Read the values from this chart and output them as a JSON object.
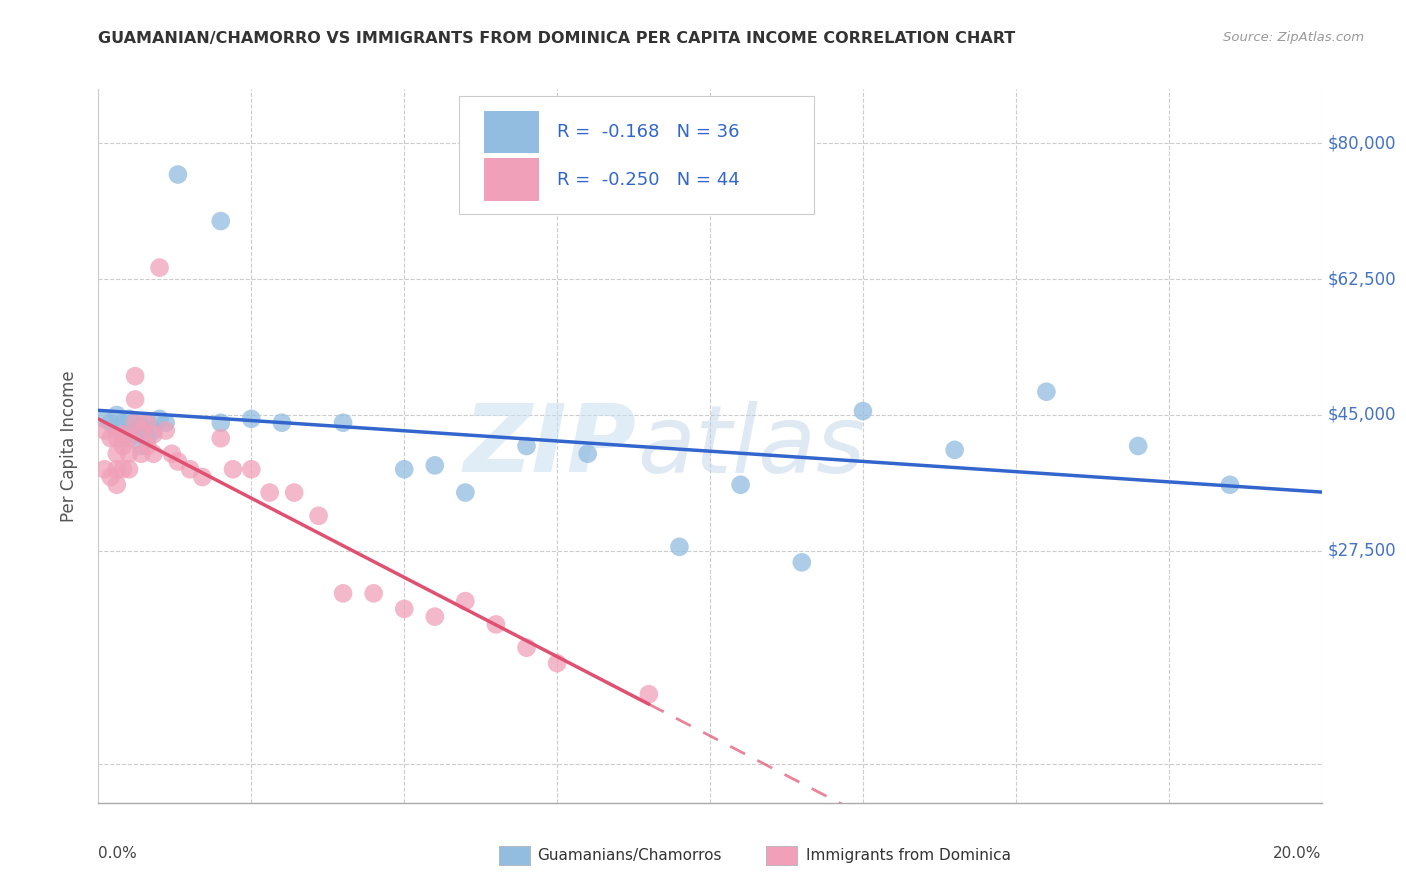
{
  "title": "GUAMANIAN/CHAMORRO VS IMMIGRANTS FROM DOMINICA PER CAPITA INCOME CORRELATION CHART",
  "source": "Source: ZipAtlas.com",
  "ylabel": "Per Capita Income",
  "yticks": [
    0,
    27500,
    45000,
    62500,
    80000
  ],
  "ytick_labels": [
    "",
    "$27,500",
    "$45,000",
    "$62,500",
    "$80,000"
  ],
  "ylim": [
    -5000,
    87000
  ],
  "xlim": [
    0.0,
    0.2
  ],
  "series1_name": "Guamanians/Chamorros",
  "series1_color": "#92bce0",
  "series1_R": "-0.168",
  "series1_N": "36",
  "series1_line_color": "#3366cc",
  "series2_name": "Immigrants from Dominica",
  "series2_color": "#f0a0b8",
  "series2_R": "-0.250",
  "series2_N": "44",
  "series2_line_color": "#e05070",
  "watermark_zip": "ZIP",
  "watermark_atlas": "atlas",
  "background_color": "#ffffff",
  "grid_color": "#cccccc",
  "series1_x": [
    0.001,
    0.002,
    0.003,
    0.003,
    0.004,
    0.004,
    0.005,
    0.005,
    0.006,
    0.006,
    0.007,
    0.007,
    0.008,
    0.008,
    0.009,
    0.01,
    0.011,
    0.013,
    0.02,
    0.02,
    0.025,
    0.03,
    0.04,
    0.05,
    0.055,
    0.06,
    0.07,
    0.08,
    0.095,
    0.105,
    0.115,
    0.125,
    0.14,
    0.155,
    0.17,
    0.185
  ],
  "series1_y": [
    44500,
    44000,
    45000,
    43000,
    44000,
    42000,
    44500,
    43000,
    44000,
    42500,
    43500,
    41000,
    44000,
    42000,
    43000,
    44500,
    44000,
    76000,
    70000,
    44000,
    44500,
    44000,
    44000,
    38000,
    38500,
    35000,
    41000,
    40000,
    28000,
    36000,
    26000,
    45500,
    40500,
    48000,
    41000,
    36000
  ],
  "series2_x": [
    0.001,
    0.001,
    0.002,
    0.002,
    0.003,
    0.003,
    0.003,
    0.003,
    0.004,
    0.004,
    0.004,
    0.005,
    0.005,
    0.005,
    0.006,
    0.006,
    0.006,
    0.007,
    0.007,
    0.008,
    0.008,
    0.009,
    0.009,
    0.01,
    0.011,
    0.012,
    0.013,
    0.015,
    0.017,
    0.02,
    0.022,
    0.025,
    0.028,
    0.032,
    0.036,
    0.04,
    0.045,
    0.05,
    0.055,
    0.06,
    0.065,
    0.07,
    0.075,
    0.09
  ],
  "series2_y": [
    43000,
    38000,
    42000,
    37000,
    42000,
    40000,
    38000,
    36000,
    42500,
    41000,
    38000,
    42000,
    40000,
    38000,
    50000,
    47000,
    44000,
    43000,
    40000,
    44000,
    41000,
    42500,
    40000,
    64000,
    43000,
    40000,
    39000,
    38000,
    37000,
    42000,
    38000,
    38000,
    35000,
    35000,
    32000,
    22000,
    22000,
    20000,
    19000,
    21000,
    18000,
    15000,
    13000,
    9000
  ]
}
